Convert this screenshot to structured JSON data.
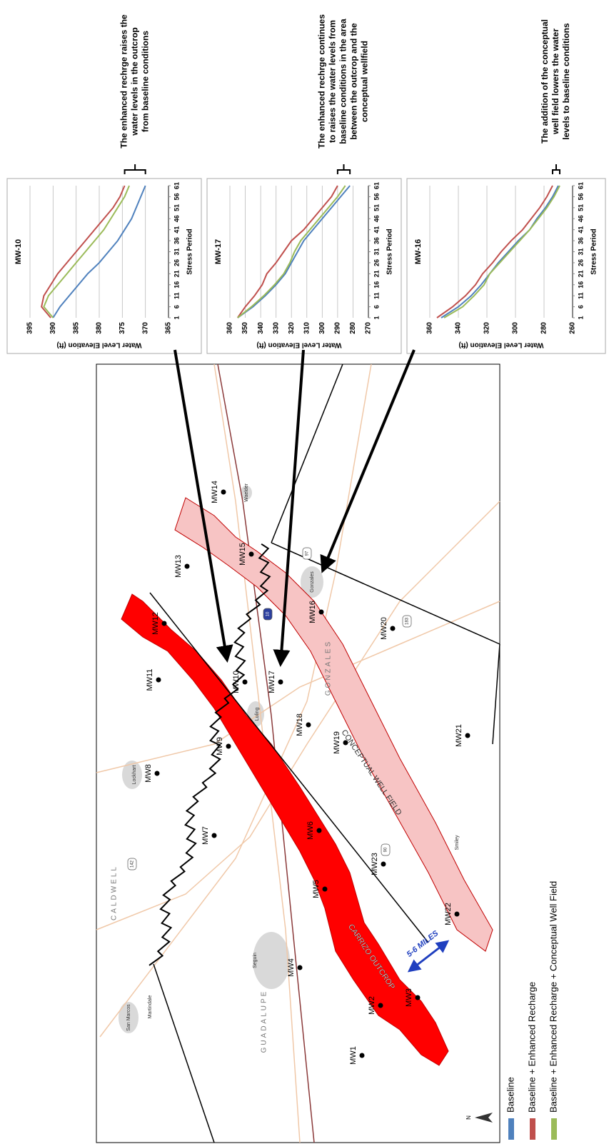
{
  "chart_data": [
    {
      "type": "line",
      "title": "MW-10",
      "xlabel": "Stress Period",
      "ylabel": "Water Level Elevation (ft)",
      "x": [
        1,
        6,
        11,
        16,
        21,
        26,
        31,
        36,
        41,
        46,
        51,
        56,
        61
      ],
      "xlim": [
        1,
        61
      ],
      "xticks": [
        1,
        6,
        11,
        16,
        21,
        26,
        31,
        36,
        41,
        46,
        51,
        56,
        61
      ],
      "ylim": [
        365,
        395
      ],
      "yticks": [
        365,
        370,
        375,
        380,
        385,
        390,
        395
      ],
      "grid": true,
      "series": [
        {
          "name": "Baseline",
          "color": "#4f81bd",
          "values": [
            390,
            388.5,
            386.5,
            384.5,
            382.5,
            380,
            378,
            376,
            374.5,
            373,
            372,
            371,
            370
          ]
        },
        {
          "name": "Baseline + Enhanced Recharge",
          "color": "#c0504d",
          "values": [
            390.5,
            392.5,
            392,
            390.5,
            389,
            387,
            385,
            383,
            381,
            379,
            377,
            375.5,
            374.5
          ]
        },
        {
          "name": "Baseline + Enhanced Recharge + Conceptual Well Field",
          "color": "#9bbb59",
          "values": [
            390,
            392,
            391,
            389,
            387,
            385,
            383,
            381,
            379,
            377.5,
            376,
            374.5,
            373.5
          ]
        }
      ],
      "annotation": [
        "The enhanced rechrge raises the",
        "water levels in the  outcrop",
        "from baseline conditions"
      ]
    },
    {
      "type": "line",
      "title": "MW-17",
      "xlabel": "Stress Period",
      "ylabel": "Water Level Elevation (ft)",
      "x": [
        1,
        6,
        11,
        16,
        21,
        26,
        31,
        36,
        41,
        46,
        51,
        56,
        61
      ],
      "xlim": [
        1,
        61
      ],
      "xticks": [
        1,
        6,
        11,
        16,
        21,
        26,
        31,
        36,
        41,
        46,
        51,
        56,
        61
      ],
      "ylim": [
        270,
        360
      ],
      "yticks": [
        270,
        280,
        290,
        300,
        310,
        320,
        330,
        340,
        350,
        360
      ],
      "grid": true,
      "series": [
        {
          "color": "#4f81bd",
          "values": [
            355,
            345,
            337,
            330,
            324,
            320,
            316,
            312,
            306,
            300,
            294,
            288,
            282
          ]
        },
        {
          "color": "#c0504d",
          "values": [
            355,
            350,
            344,
            339,
            336,
            330,
            325,
            320,
            312,
            306,
            300,
            294,
            290
          ]
        },
        {
          "color": "#9bbb59",
          "values": [
            355,
            346,
            338,
            331,
            325,
            321,
            318,
            314,
            308,
            302,
            296,
            290,
            285
          ]
        }
      ],
      "annotation": [
        "The enhanced rechrge continues",
        "to raises the  water levels  from",
        "baseline conditions in the area",
        "between the outcrop and the",
        "conceptual wellfield"
      ]
    },
    {
      "type": "line",
      "title": "MW-16",
      "xlabel": "Stress Period",
      "ylabel": "Water Level Elevation (ft)",
      "x": [
        1,
        6,
        11,
        16,
        21,
        26,
        31,
        36,
        41,
        46,
        51,
        56,
        61
      ],
      "xlim": [
        1,
        61
      ],
      "xticks": [
        1,
        6,
        11,
        16,
        21,
        26,
        31,
        36,
        41,
        46,
        51,
        56,
        61
      ],
      "ylim": [
        260,
        360
      ],
      "yticks": [
        260,
        280,
        300,
        320,
        340,
        360
      ],
      "grid": true,
      "series": [
        {
          "color": "#4f81bd",
          "values": [
            352,
            340,
            331,
            324,
            318,
            312,
            305,
            298,
            290,
            285,
            279,
            274,
            270
          ]
        },
        {
          "color": "#c0504d",
          "values": [
            355,
            344,
            335,
            328,
            323,
            316,
            310,
            303,
            295,
            289,
            283,
            278,
            274
          ]
        },
        {
          "color": "#9bbb59",
          "values": [
            350,
            337,
            329,
            322,
            318,
            311,
            304,
            297,
            290,
            284,
            278,
            273,
            269
          ]
        }
      ],
      "annotation": [
        "The addition of the conceptual",
        "well field lowers the water",
        "levels to baseline conditions"
      ]
    }
  ],
  "map": {
    "wells": [
      "MW1",
      "MW2",
      "MW3",
      "MW4",
      "MW5",
      "MW6",
      "MW7",
      "MW8",
      "MW9",
      "MW10",
      "MW11",
      "MW12",
      "MW13",
      "MW14",
      "MW15",
      "MW16",
      "MW17",
      "MW18",
      "MW19",
      "MW20",
      "MW21",
      "MW22",
      "MW23"
    ],
    "counties": [
      "CALDWELL",
      "GUADALUPE",
      "GONZALES"
    ],
    "towns": [
      "San Marcos",
      "Martindale",
      "Lockhart",
      "Luling",
      "Seguin",
      "Gonzales",
      "Waelder",
      "Smiley"
    ],
    "highways": [
      "10",
      "97",
      "183",
      "142",
      "90"
    ],
    "outcrop": "CARRIZO OUTCROP",
    "well_field": "CONCEPTUAL WELL FIELD",
    "distance": "5-6 MILES",
    "north": "N"
  }
}
